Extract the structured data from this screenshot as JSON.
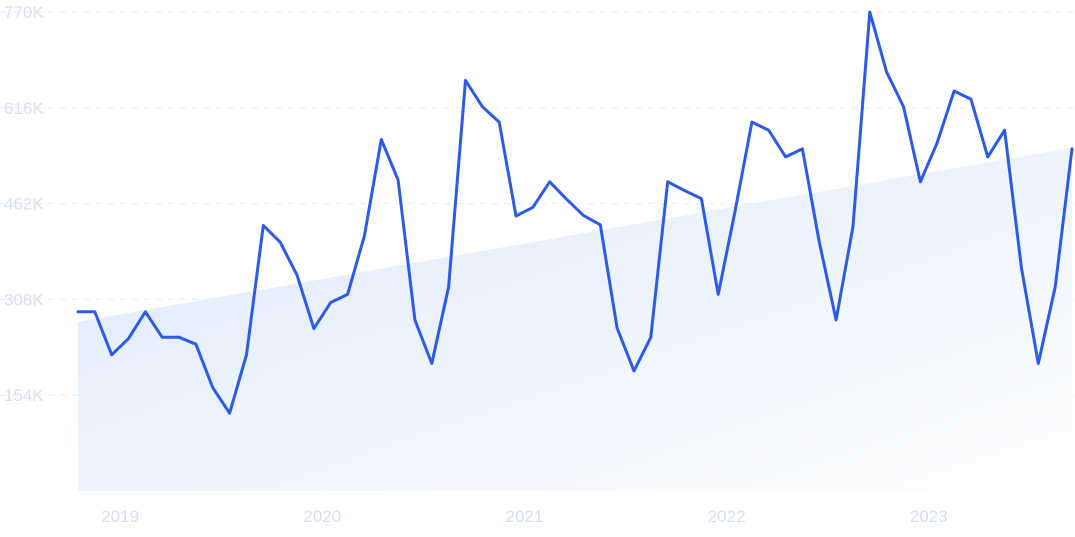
{
  "chart_data": {
    "type": "line",
    "title": "",
    "xlabel": "",
    "ylabel": "",
    "x_tick_labels": [
      "2019",
      "2020",
      "2021",
      "2022",
      "2023"
    ],
    "y_tick_labels": [
      "770K",
      "616K",
      "462K",
      "308K",
      "154K"
    ],
    "ylim": [
      0,
      770000
    ],
    "grid": true,
    "legend": "none",
    "colors": {
      "line": "#2d5be3",
      "area_top": "#dbe8fb",
      "area_bottom": "#ffffff",
      "grid": "#e6ebf5",
      "tick": "#d4def7"
    },
    "series": [
      {
        "values": [
          288000,
          288000,
          219000,
          245000,
          288000,
          247000,
          247000,
          236000,
          166000,
          125000,
          219000,
          427000,
          400000,
          347000,
          261000,
          303000,
          316000,
          410000,
          565000,
          500000,
          275000,
          205000,
          328000,
          660000,
          618000,
          593000,
          442000,
          456000,
          497000,
          469000,
          443000,
          428000,
          262000,
          193000,
          247000,
          497000,
          483000,
          470000,
          316000,
          450000,
          593000,
          580000,
          537000,
          550000,
          400000,
          275000,
          425000,
          770000,
          673000,
          618000,
          497000,
          560000,
          643000,
          630000,
          537000,
          580000,
          358000,
          205000,
          328000,
          550000
        ]
      }
    ],
    "trend": {
      "start": 272000,
      "end": 552000
    }
  }
}
